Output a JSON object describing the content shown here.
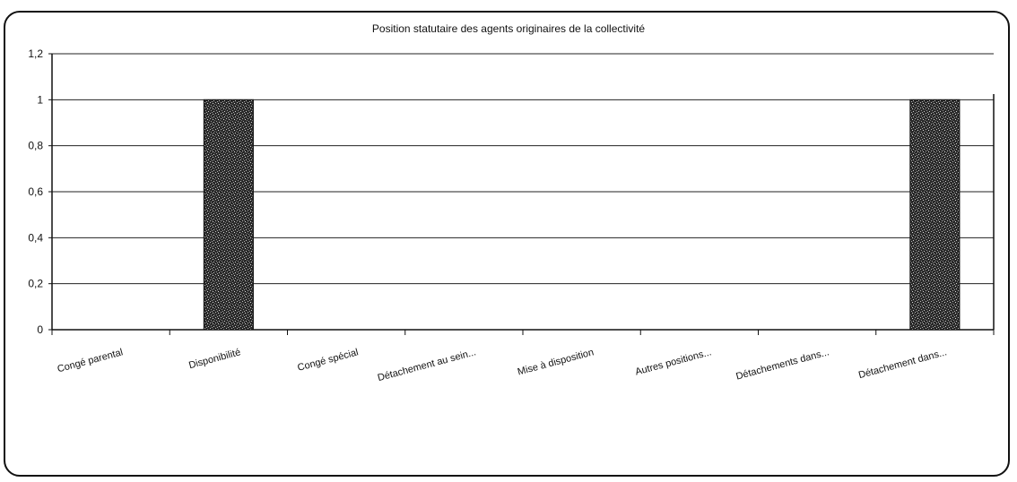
{
  "chart_data": {
    "type": "bar",
    "title": "Position statutaire des agents originaires de la collectivité",
    "categories": [
      "Congé parental",
      "Disponibilité",
      "Congé spécial",
      "Détachement au sein...",
      "Mise à disposition",
      "Autres positions...",
      "Détachements dans...",
      "Détachement dans..."
    ],
    "values": [
      0,
      1,
      0,
      0,
      0,
      0,
      0,
      1
    ],
    "ylim": [
      0,
      1.2
    ],
    "yticks": [
      "0",
      "0,2",
      "0,4",
      "0,6",
      "0,8",
      "1",
      "1,2"
    ],
    "grid": true,
    "bar_fill": "#2a2a2a"
  }
}
